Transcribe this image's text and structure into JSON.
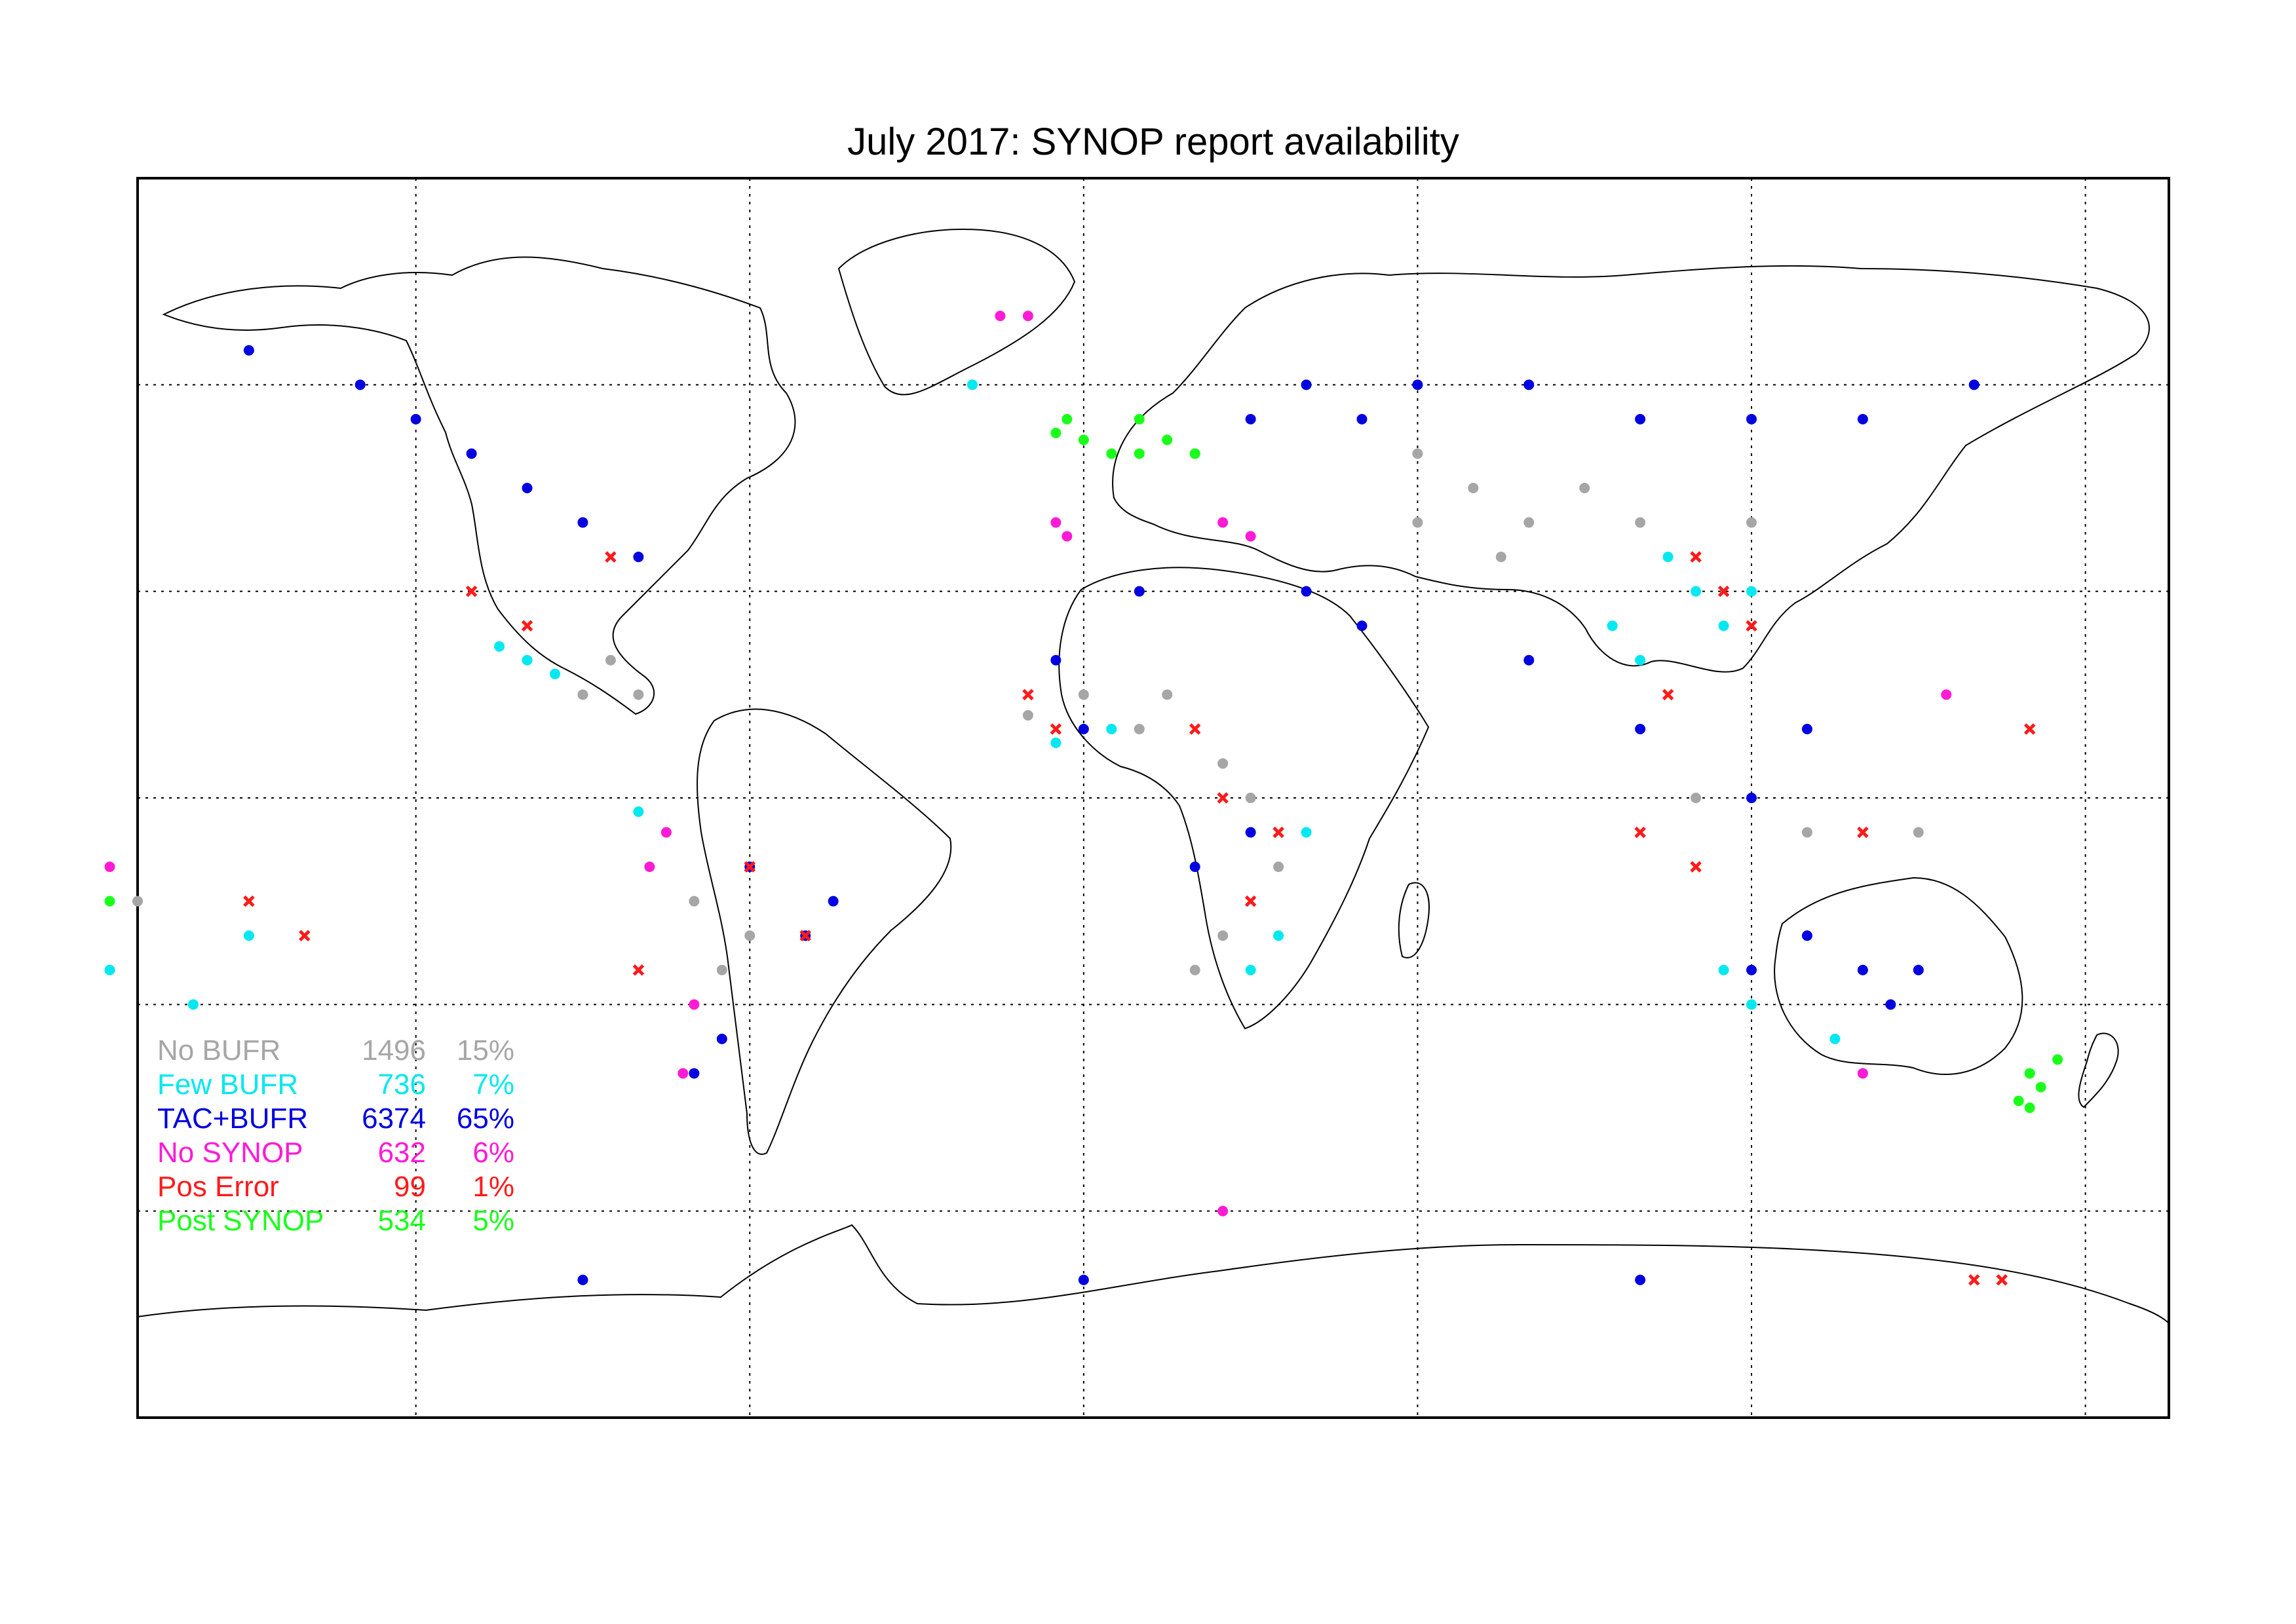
{
  "title": "July 2017: SYNOP report availability",
  "map": {
    "projection": "equirectangular",
    "lon_range": [
      -170,
      195
    ],
    "lat_range": [
      -90,
      90
    ],
    "gridlines": true,
    "grid_style": "dotted"
  },
  "legend": {
    "placement": "lower-left",
    "items": [
      {
        "label": "No BUFR",
        "count": "1496",
        "percent": "15%",
        "color": "#a6a6a6",
        "marker": "dot"
      },
      {
        "label": "Few BUFR",
        "count": "736",
        "percent": "7%",
        "color": "#00e8f0",
        "marker": "dot"
      },
      {
        "label": "TAC+BUFR",
        "count": "6374",
        "percent": "65%",
        "color": "#0000e0",
        "marker": "dot"
      },
      {
        "label": "No SYNOP",
        "count": "632",
        "percent": "6%",
        "color": "#ff1ad6",
        "marker": "dot"
      },
      {
        "label": "Pos Error",
        "count": "99",
        "percent": "1%",
        "color": "#ff1a1a",
        "marker": "cross"
      },
      {
        "label": "Post SYNOP",
        "count": "534",
        "percent": "5%",
        "color": "#1aff1a",
        "marker": "dot"
      }
    ]
  },
  "chart_data": {
    "type": "scatter",
    "title": "July 2017: SYNOP report availability",
    "xlim": [
      -170,
      195
    ],
    "ylim": [
      -90,
      90
    ],
    "series": [
      {
        "name": "No BUFR",
        "points": [
          [
            60,
            50
          ],
          [
            70,
            45
          ],
          [
            80,
            40
          ],
          [
            90,
            45
          ],
          [
            100,
            40
          ],
          [
            75,
            35
          ],
          [
            60,
            40
          ],
          [
            30,
            0
          ],
          [
            35,
            -10
          ],
          [
            25,
            -20
          ],
          [
            20,
            -25
          ],
          [
            25,
            5
          ],
          [
            10,
            10
          ],
          [
            15,
            15
          ],
          [
            0,
            15
          ],
          [
            -10,
            12
          ],
          [
            -60,
            -20
          ],
          [
            -65,
            -25
          ],
          [
            -70,
            -15
          ],
          [
            -75,
            -5
          ],
          [
            -80,
            15
          ],
          [
            -85,
            20
          ],
          [
            -90,
            15
          ],
          [
            110,
            0
          ],
          [
            130,
            -5
          ],
          [
            150,
            -5
          ],
          [
            120,
            40
          ],
          [
            140,
            -40
          ],
          [
            -170,
            -15
          ]
        ]
      },
      {
        "name": "Few BUFR",
        "points": [
          [
            105,
            35
          ],
          [
            110,
            30
          ],
          [
            115,
            25
          ],
          [
            100,
            20
          ],
          [
            95,
            25
          ],
          [
            -100,
            20
          ],
          [
            -95,
            18
          ],
          [
            -105,
            22
          ],
          [
            5,
            10
          ],
          [
            -5,
            8
          ],
          [
            30,
            -25
          ],
          [
            35,
            -20
          ],
          [
            40,
            -5
          ],
          [
            -80,
            -2
          ],
          [
            120,
            -30
          ],
          [
            170,
            -40
          ],
          [
            135,
            -35
          ],
          [
            -150,
            -20
          ],
          [
            -160,
            -30
          ],
          [
            -175,
            -25
          ],
          [
            115,
            -25
          ],
          [
            120,
            30
          ],
          [
            -20,
            60
          ]
        ]
      },
      {
        "name": "TAC+BUFR",
        "points": [
          [
            40,
            60
          ],
          [
            30,
            55
          ],
          [
            20,
            50
          ],
          [
            50,
            55
          ],
          [
            60,
            60
          ],
          [
            80,
            60
          ],
          [
            100,
            55
          ],
          [
            120,
            55
          ],
          [
            140,
            55
          ],
          [
            160,
            60
          ],
          [
            -100,
            45
          ],
          [
            -90,
            40
          ],
          [
            -80,
            35
          ],
          [
            -110,
            50
          ],
          [
            -120,
            55
          ],
          [
            -130,
            60
          ],
          [
            -150,
            65
          ],
          [
            -60,
            -10
          ],
          [
            -50,
            -20
          ],
          [
            -45,
            -15
          ],
          [
            -65,
            -35
          ],
          [
            -70,
            -40
          ],
          [
            140,
            -25
          ],
          [
            145,
            -30
          ],
          [
            150,
            -25
          ],
          [
            130,
            -20
          ],
          [
            120,
            -25
          ],
          [
            30,
            -5
          ],
          [
            20,
            -10
          ],
          [
            0,
            10
          ],
          [
            -5,
            20
          ],
          [
            10,
            30
          ],
          [
            40,
            30
          ],
          [
            50,
            25
          ],
          [
            80,
            20
          ],
          [
            100,
            10
          ],
          [
            120,
            0
          ],
          [
            130,
            10
          ],
          [
            -90,
            -70
          ],
          [
            0,
            -70
          ],
          [
            100,
            -70
          ]
        ]
      },
      {
        "name": "No SYNOP",
        "points": [
          [
            -5,
            40
          ],
          [
            -3,
            38
          ],
          [
            25,
            40
          ],
          [
            30,
            38
          ],
          [
            -15,
            70
          ],
          [
            -10,
            70
          ],
          [
            -75,
            -5
          ],
          [
            -78,
            -10
          ],
          [
            -70,
            -30
          ],
          [
            -72,
            -40
          ],
          [
            140,
            -40
          ],
          [
            -175,
            -10
          ],
          [
            155,
            15
          ],
          [
            25,
            -60
          ]
        ]
      },
      {
        "name": "Pos Error",
        "points": [
          [
            -110,
            30
          ],
          [
            -100,
            25
          ],
          [
            -85,
            35
          ],
          [
            -10,
            15
          ],
          [
            -5,
            10
          ],
          [
            -50,
            -20
          ],
          [
            -60,
            -10
          ],
          [
            20,
            10
          ],
          [
            25,
            0
          ],
          [
            35,
            -5
          ],
          [
            30,
            -15
          ],
          [
            -80,
            -25
          ],
          [
            110,
            35
          ],
          [
            115,
            30
          ],
          [
            120,
            25
          ],
          [
            105,
            15
          ],
          [
            100,
            -5
          ],
          [
            110,
            -10
          ],
          [
            140,
            -5
          ],
          [
            -150,
            -15
          ],
          [
            -140,
            -20
          ],
          [
            170,
            10
          ],
          [
            160,
            -70
          ],
          [
            165,
            -70
          ]
        ]
      },
      {
        "name": "Post SYNOP",
        "points": [
          [
            -5,
            53
          ],
          [
            -3,
            55
          ],
          [
            0,
            52
          ],
          [
            5,
            50
          ],
          [
            10,
            50
          ],
          [
            15,
            52
          ],
          [
            10,
            55
          ],
          [
            20,
            50
          ],
          [
            170,
            -40
          ],
          [
            172,
            -42
          ],
          [
            175,
            -38
          ],
          [
            170,
            -45
          ],
          [
            168,
            -44
          ],
          [
            -175,
            -15
          ]
        ]
      }
    ]
  }
}
